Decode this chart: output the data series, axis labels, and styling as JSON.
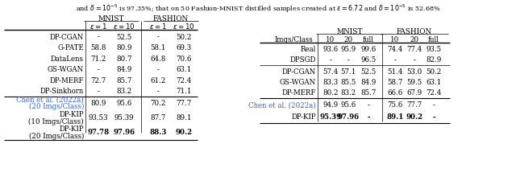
{
  "title": "and $\\delta = 10^{-5}$ is 97.35%; that on 50 Fashion-MNIST distilled samples created at $\\epsilon = 6.72$ and $\\delta = 10^{-5}$ is 52.68%",
  "left_table": {
    "header1": [
      "",
      "MNIST",
      "",
      "FASHION",
      ""
    ],
    "header2": [
      "",
      "$\\epsilon=1$",
      "$\\epsilon=10$",
      "$\\epsilon=1$",
      "$\\epsilon=10$"
    ],
    "rows": [
      [
        "DP-CGAN",
        "-",
        "52.5",
        "-",
        "50.2"
      ],
      [
        "G-PATE",
        "58.8",
        "80.9",
        "58.1",
        "69.3"
      ],
      [
        "DataLens",
        "71.2",
        "80.7",
        "64.8",
        "70.6"
      ],
      [
        "GS-WGAN",
        "-",
        "84.9",
        "-",
        "63.1"
      ],
      [
        "DP-MERF",
        "72.7",
        "85.7",
        "61.2",
        "72.4"
      ],
      [
        "DP-Sinkhorn",
        "-",
        "83.2",
        "-",
        "71.1"
      ]
    ],
    "chen_row": [
      "Chen et al. (2022a)",
      "",
      "(20 Imgs/Class)",
      "80.9",
      "95.6",
      "70.2",
      "77.7"
    ],
    "kip10_row": [
      "DP-KIP",
      "",
      "(10 Imgs/Class)",
      "93.53",
      "95.39",
      "87.7",
      "89.1"
    ],
    "kip20_row": [
      "DP-KIP",
      "",
      "(20 Imgs/Class)",
      "97.78",
      "97.96",
      "88.3",
      "90.2"
    ]
  },
  "right_table": {
    "header1": [
      "",
      "MNIST",
      "",
      "",
      "FASHION",
      "",
      ""
    ],
    "header2": [
      "Imgs/Class",
      "10",
      "20",
      "full",
      "10",
      "20",
      "full"
    ],
    "top_rows": [
      [
        "Real",
        "93.6",
        "95.9",
        "99.6",
        "74.4",
        "77.4",
        "93.5"
      ],
      [
        "DPSGD",
        "-",
        "-",
        "96.5",
        "-",
        "-",
        "82.9"
      ]
    ],
    "mid_rows": [
      [
        "DP-CGAN",
        "57.4",
        "57.1",
        "52.5",
        "51.4",
        "53.0",
        "50.2"
      ],
      [
        "GS-WGAN",
        "83.3",
        "85.5",
        "84.9",
        "58.7",
        "59.5",
        "63.1"
      ],
      [
        "DP-MERF",
        "80.2",
        "83.2",
        "85.7",
        "66.6",
        "67.9",
        "72.4"
      ]
    ],
    "chen_row": [
      "Chen et al. (2022a)",
      "94.9",
      "95.6",
      "-",
      "75.6",
      "77.7",
      "-"
    ],
    "kip_row": [
      "DP-KIP",
      "95.39",
      "97.96",
      "-",
      "89.1",
      "90.2",
      "-"
    ]
  }
}
